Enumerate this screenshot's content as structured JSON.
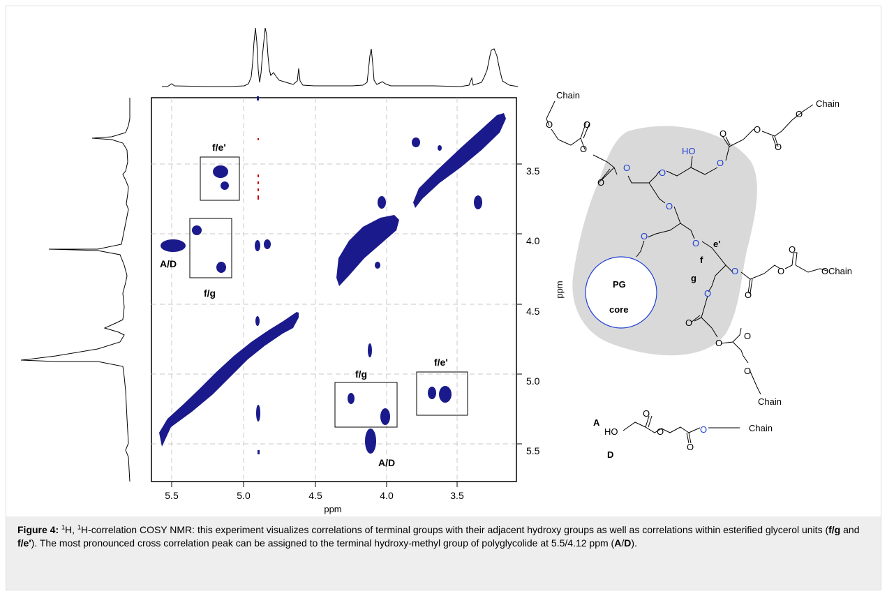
{
  "figure": {
    "x_axis_title": "ppm",
    "y_axis_title": "ppm",
    "x_ticks": [
      "5.5",
      "5.0",
      "4.5",
      "4.0",
      "3.5"
    ],
    "y_ticks": [
      "3.5",
      "4.0",
      "4.5",
      "5.0",
      "5.5"
    ],
    "peak_labels": {
      "fe_top": "f/e'",
      "ad_left": "A/D",
      "fg_left": "f/g",
      "fg_bottom": "f/g",
      "fe_right": "f/e'",
      "ad_bottom": "A/D"
    },
    "structure": {
      "chain_1": "Chain",
      "chain_2": "Chain",
      "chain_3": "Chain",
      "chain_4": "Chain",
      "chain_5": "Chain",
      "ho_label": "HO",
      "core_line1": "PG",
      "core_line2": "core",
      "label_e": "e'",
      "label_f": "f",
      "label_g": "g",
      "label_A": "A",
      "label_D": "D",
      "ho_small": "HO",
      "o_atom": "O"
    },
    "colors": {
      "peak": "#1a1a8c",
      "hetero": "#1f3fd6",
      "blob": "#d9d9d9",
      "frame": "#000000"
    }
  },
  "caption": {
    "label": "Figure 4:",
    "sup1": "1",
    "t1": "H, ",
    "sup2": "1",
    "t2": "H-correlation COSY NMR: this experiment visualizes correlations of terminal groups with their adjacent hydroxy groups as well as correlations within esterified glycerol units (",
    "fg": "f/g",
    "and": " and ",
    "fe": "f/e'",
    "t3": "). The most pronounced cross correlation peak can be assigned to the terminal hydroxy-methyl group of polyglycolide at 5.5/4.12 ppm (",
    "A": "A",
    "slash": "/",
    "D": "D",
    "t4": ")."
  }
}
